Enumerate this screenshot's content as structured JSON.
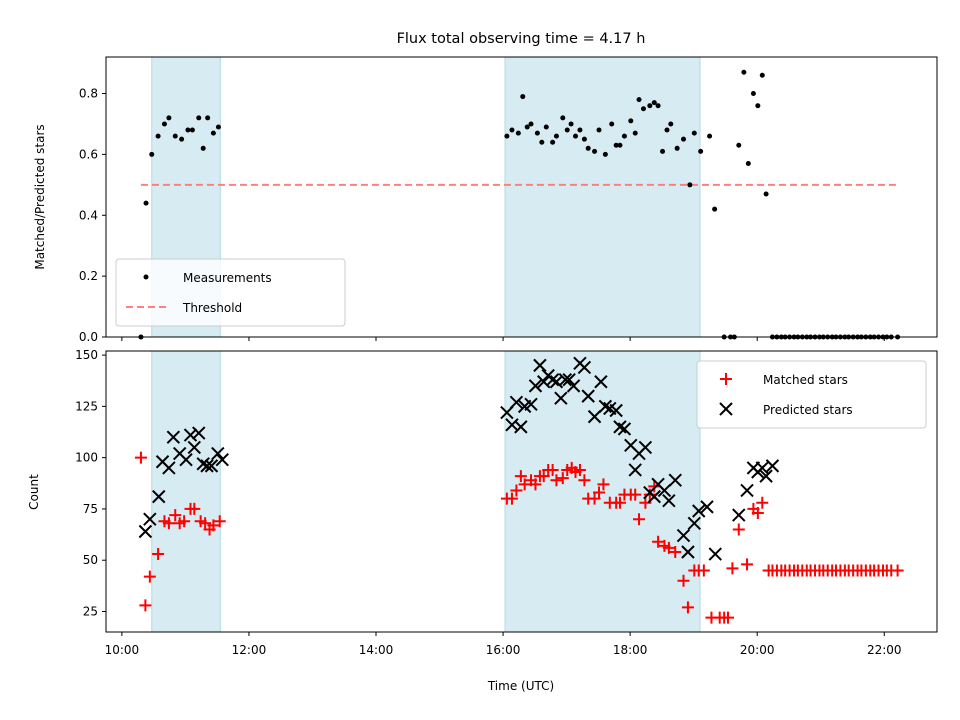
{
  "chart_data": [
    {
      "type": "scatter",
      "title": "Flux total observing time = 4.17 h",
      "xlabel": "",
      "ylabel": "Matched/Predicted stars",
      "xlim": [
        9.75,
        22.83
      ],
      "ylim": [
        0,
        0.92
      ],
      "yticks": [
        0.0,
        0.2,
        0.4,
        0.6,
        0.8
      ],
      "ytick_labels": [
        "0.0",
        "0.2",
        "0.4",
        "0.6",
        "0.8"
      ],
      "shaded_intervals": [
        [
          10.47,
          11.55
        ],
        [
          16.03,
          19.1
        ]
      ],
      "shade_color": "#add8e6",
      "legend_position": "lower-left",
      "series": [
        {
          "name": "Measurements",
          "kind": "points",
          "color": "#000000",
          "x": [
            10.3,
            10.38,
            10.47,
            10.57,
            10.67,
            10.74,
            10.84,
            10.94,
            11.04,
            11.11,
            11.21,
            11.28,
            11.35,
            11.44,
            11.52,
            16.06,
            16.14,
            16.24,
            16.31,
            16.38,
            16.44,
            16.54,
            16.61,
            16.68,
            16.78,
            16.84,
            16.94,
            17.01,
            17.07,
            17.14,
            17.21,
            17.28,
            17.34,
            17.44,
            17.51,
            17.61,
            17.71,
            17.78,
            17.84,
            17.91,
            18.01,
            18.08,
            18.14,
            18.21,
            18.31,
            18.38,
            18.44,
            18.51,
            18.58,
            18.64,
            18.74,
            18.84,
            18.94,
            19.01,
            19.11,
            19.25,
            19.33,
            19.48,
            19.58,
            19.64,
            19.71,
            19.79,
            19.86,
            19.94,
            20.01,
            20.08,
            20.14,
            20.24,
            20.31,
            20.38,
            20.44,
            20.51,
            20.58,
            20.64,
            20.71,
            20.78,
            20.84,
            20.91,
            20.98,
            21.04,
            21.11,
            21.18,
            21.24,
            21.31,
            21.38,
            21.44,
            21.51,
            21.58,
            21.64,
            21.71,
            21.78,
            21.84,
            21.91,
            21.98,
            22.04,
            22.11,
            22.21
          ],
          "y": [
            0.0,
            0.44,
            0.6,
            0.66,
            0.7,
            0.72,
            0.66,
            0.65,
            0.68,
            0.68,
            0.72,
            0.62,
            0.72,
            0.67,
            0.69,
            0.66,
            0.68,
            0.67,
            0.79,
            0.69,
            0.7,
            0.67,
            0.64,
            0.69,
            0.64,
            0.66,
            0.72,
            0.68,
            0.7,
            0.66,
            0.68,
            0.65,
            0.62,
            0.61,
            0.68,
            0.6,
            0.7,
            0.63,
            0.63,
            0.66,
            0.71,
            0.67,
            0.78,
            0.75,
            0.76,
            0.77,
            0.76,
            0.61,
            0.68,
            0.7,
            0.62,
            0.65,
            0.5,
            0.67,
            0.61,
            0.66,
            0.42,
            0.0,
            0.0,
            0.0,
            0.63,
            0.87,
            0.57,
            0.8,
            0.76,
            0.86,
            0.47,
            0.0,
            0.0,
            0.0,
            0.0,
            0.0,
            0.0,
            0.0,
            0.0,
            0.0,
            0.0,
            0.0,
            0.0,
            0.0,
            0.0,
            0.0,
            0.0,
            0.0,
            0.0,
            0.0,
            0.0,
            0.0,
            0.0,
            0.0,
            0.0,
            0.0,
            0.0,
            0.0,
            0.0,
            0.0,
            0.0
          ]
        },
        {
          "name": "Threshold",
          "kind": "dashed-line",
          "color": "#ff7f7f",
          "x": [
            10.3,
            22.21
          ],
          "y": [
            0.5,
            0.5
          ]
        }
      ]
    },
    {
      "type": "scatter",
      "title": "",
      "xlabel": "Time (UTC)",
      "ylabel": "Count",
      "xlim": [
        9.75,
        22.83
      ],
      "ylim": [
        15,
        152
      ],
      "xticks": [
        10,
        12,
        14,
        16,
        18,
        20,
        22
      ],
      "xtick_labels": [
        "10:00",
        "12:00",
        "14:00",
        "16:00",
        "18:00",
        "20:00",
        "22:00"
      ],
      "yticks": [
        25,
        50,
        75,
        100,
        125,
        150
      ],
      "ytick_labels": [
        "25",
        "50",
        "75",
        "100",
        "125",
        "150"
      ],
      "shaded_intervals": [
        [
          10.47,
          11.55
        ],
        [
          16.03,
          19.1
        ]
      ],
      "shade_color": "#add8e6",
      "legend_position": "top-right",
      "series": [
        {
          "name": "Matched stars",
          "kind": "plus",
          "color": "#ff0000",
          "x": [
            10.3,
            10.37,
            10.44,
            10.57,
            10.67,
            10.74,
            10.84,
            10.91,
            10.98,
            11.08,
            11.14,
            11.24,
            11.31,
            11.38,
            11.44,
            11.54,
            16.06,
            16.14,
            16.21,
            16.28,
            16.34,
            16.44,
            16.51,
            16.58,
            16.64,
            16.71,
            16.78,
            16.84,
            16.94,
            17.01,
            17.08,
            17.14,
            17.21,
            17.28,
            17.34,
            17.44,
            17.51,
            17.58,
            17.68,
            17.78,
            17.84,
            17.91,
            18.01,
            18.08,
            18.14,
            18.24,
            18.31,
            18.38,
            18.44,
            18.54,
            18.61,
            18.71,
            18.84,
            18.91,
            19.01,
            19.08,
            19.16,
            19.28,
            19.41,
            19.48,
            19.54,
            19.61,
            19.71,
            19.84,
            19.94,
            20.01,
            20.08,
            20.18,
            20.24,
            20.31,
            20.38,
            20.44,
            20.51,
            20.58,
            20.64,
            20.71,
            20.78,
            20.84,
            20.91,
            20.98,
            21.04,
            21.11,
            21.18,
            21.24,
            21.31,
            21.38,
            21.44,
            21.51,
            21.58,
            21.64,
            21.71,
            21.78,
            21.84,
            21.91,
            21.98,
            22.04,
            22.11,
            22.21
          ],
          "y": [
            100,
            28,
            42,
            53,
            69,
            68,
            72,
            68,
            69,
            75,
            75,
            69,
            68,
            65,
            67,
            69,
            80,
            80,
            84,
            91,
            87,
            89,
            87,
            91,
            91,
            94,
            94,
            89,
            90,
            94,
            95,
            93,
            94,
            89,
            80,
            80,
            83,
            87,
            78,
            78,
            78,
            82,
            82,
            82,
            70,
            78,
            82,
            86,
            59,
            57,
            56,
            54,
            40,
            27,
            45,
            45,
            45,
            22,
            22,
            22,
            22,
            46,
            65,
            48,
            75,
            73,
            78,
            45,
            45,
            45,
            45,
            45,
            45,
            45,
            45,
            45,
            45,
            45,
            45,
            45,
            45,
            45,
            45,
            45,
            45,
            45,
            45,
            45,
            45,
            45,
            45,
            45,
            45,
            45,
            45,
            45,
            45,
            45
          ]
        },
        {
          "name": "Predicted stars",
          "kind": "cross",
          "color": "#000000",
          "x": [
            10.37,
            10.44,
            10.58,
            10.64,
            10.74,
            10.81,
            10.91,
            11.01,
            11.08,
            11.14,
            11.21,
            11.28,
            11.34,
            11.41,
            11.51,
            11.58,
            16.06,
            16.14,
            16.21,
            16.28,
            16.34,
            16.44,
            16.51,
            16.58,
            16.64,
            16.71,
            16.78,
            16.84,
            16.91,
            16.98,
            17.04,
            17.11,
            17.21,
            17.28,
            17.34,
            17.44,
            17.54,
            17.61,
            17.68,
            17.78,
            17.84,
            17.91,
            18.01,
            18.08,
            18.14,
            18.24,
            18.31,
            18.38,
            18.44,
            18.54,
            18.61,
            18.71,
            18.84,
            18.91,
            19.01,
            19.08,
            19.21,
            19.34,
            19.71,
            19.84,
            19.94,
            20.01,
            20.08,
            20.14,
            20.24
          ],
          "y": [
            64,
            70,
            81,
            98,
            95,
            110,
            102,
            99,
            111,
            105,
            112,
            97,
            96,
            96,
            102,
            99,
            122,
            116,
            127,
            115,
            125,
            126,
            135,
            145,
            137,
            140,
            138,
            137,
            129,
            138,
            138,
            135,
            146,
            144,
            130,
            120,
            137,
            125,
            124,
            123,
            115,
            114,
            106,
            94,
            102,
            105,
            83,
            81,
            87,
            84,
            79,
            89,
            62,
            54,
            68,
            74,
            76,
            53,
            72,
            84,
            95,
            93,
            95,
            91,
            96
          ]
        }
      ]
    }
  ]
}
